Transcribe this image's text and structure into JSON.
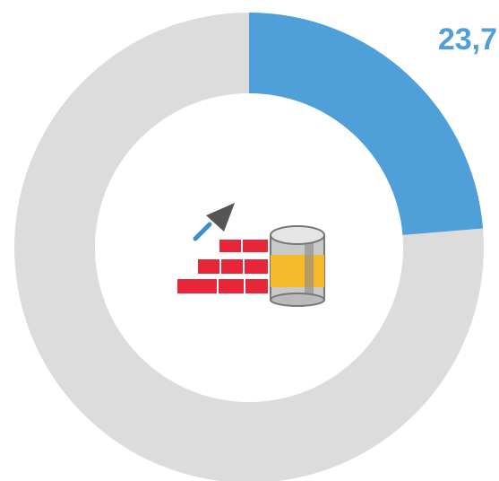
{
  "chart_data": {
    "type": "donut",
    "values": [
      23.7,
      76.3
    ],
    "value_labels": [
      "23,7",
      null
    ],
    "colors": [
      "#4f9fd8",
      "#dcdcdc"
    ]
  }
}
